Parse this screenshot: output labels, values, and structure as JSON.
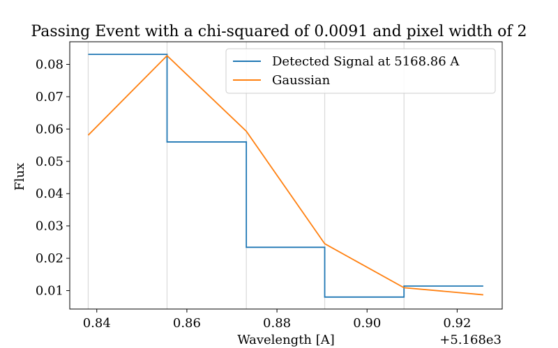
{
  "chart_data": {
    "type": "line",
    "title": "Passing Event with a chi-squared of 0.0091 and pixel width of 2",
    "xlabel": "Wavelength [A]",
    "ylabel": "Flux",
    "x_offset_label": "+5.168e3",
    "xlim": [
      0.834,
      0.93
    ],
    "ylim": [
      0.0043,
      0.087
    ],
    "x_ticks": [
      0.84,
      0.86,
      0.88,
      0.9,
      0.92
    ],
    "x_tick_labels": [
      "0.84",
      "0.86",
      "0.88",
      "0.90",
      "0.92"
    ],
    "y_ticks": [
      0.01,
      0.02,
      0.03,
      0.04,
      0.05,
      0.06,
      0.07,
      0.08
    ],
    "y_tick_labels": [
      "0.01",
      "0.02",
      "0.03",
      "0.04",
      "0.05",
      "0.06",
      "0.07",
      "0.08"
    ],
    "vlines": [
      0.8381,
      0.8556,
      0.8732,
      0.8906,
      0.9082
    ],
    "grid": false,
    "legend_position": "top-right",
    "series": [
      {
        "name": "Detected Signal at 5168.86 A",
        "style": "step-post",
        "color": "#1f77b4",
        "x": [
          0.8381,
          0.8556,
          0.8732,
          0.8906,
          0.9082,
          0.9258
        ],
        "y": [
          0.0831,
          0.056,
          0.0234,
          0.008,
          0.0114,
          0.0114
        ]
      },
      {
        "name": "Gaussian",
        "style": "line",
        "color": "#ff7f0e",
        "x": [
          0.8381,
          0.8556,
          0.8732,
          0.8906,
          0.9082,
          0.9258
        ],
        "y": [
          0.0581,
          0.0827,
          0.0593,
          0.0245,
          0.0109,
          0.0087
        ]
      }
    ]
  }
}
